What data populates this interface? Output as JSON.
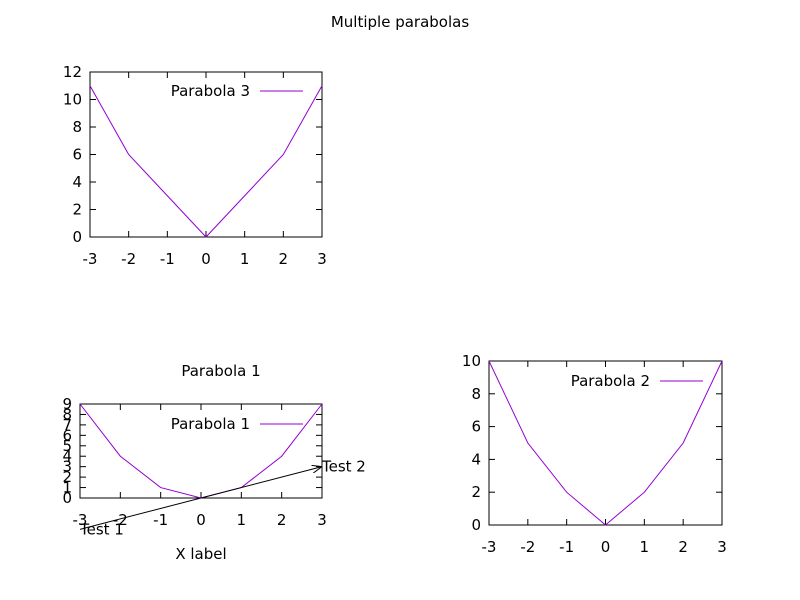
{
  "title": "Multiple parabolas",
  "chart_data": [
    {
      "type": "line",
      "title": "",
      "xlabel": "",
      "ylabel": "",
      "xlim": [
        -3,
        3
      ],
      "ylim": [
        0,
        12
      ],
      "xticks": [
        "-3",
        "-2",
        "-1",
        "0",
        "1",
        "2",
        "3"
      ],
      "yticks": [
        "0",
        "2",
        "4",
        "6",
        "8",
        "10",
        "12"
      ],
      "series": [
        {
          "name": "Parabola 3",
          "color": "#9400d3",
          "x": [
            -3,
            -2,
            -1,
            0,
            1,
            2,
            3
          ],
          "y": [
            11,
            6,
            3,
            0,
            3,
            6,
            11
          ]
        }
      ],
      "legend": "top-right",
      "grid": false
    },
    {
      "type": "line",
      "title": "Parabola 1",
      "xlabel": "X label",
      "ylabel": "",
      "xlim": [
        -3,
        3
      ],
      "ylim": [
        0,
        9
      ],
      "xticks": [
        "-3",
        "-2",
        "-1",
        "0",
        "1",
        "2",
        "3"
      ],
      "yticks": [
        "0",
        "1",
        "2",
        "3",
        "4",
        "5",
        "6",
        "7",
        "8",
        "9"
      ],
      "series": [
        {
          "name": "Parabola 1",
          "color": "#9400d3",
          "x": [
            -3,
            -2,
            -1,
            0,
            1,
            2,
            3
          ],
          "y": [
            9,
            4,
            1,
            0,
            1,
            4,
            9
          ]
        }
      ],
      "annotations": [
        {
          "text": "Test 1",
          "x": -3,
          "y": -3
        },
        {
          "text": "Test 2",
          "x": 3,
          "y": 3
        }
      ],
      "arrows": [
        {
          "from": [
            -3,
            -3
          ],
          "to": [
            3,
            3
          ]
        }
      ],
      "legend": "top-right",
      "grid": false
    },
    {
      "type": "line",
      "title": "",
      "xlabel": "",
      "ylabel": "",
      "xlim": [
        -3,
        3
      ],
      "ylim": [
        0,
        10
      ],
      "xticks": [
        "-3",
        "-2",
        "-1",
        "0",
        "1",
        "2",
        "3"
      ],
      "yticks": [
        "0",
        "2",
        "4",
        "6",
        "8",
        "10"
      ],
      "series": [
        {
          "name": "Parabola 2",
          "color": "#9400d3",
          "x": [
            -3,
            -2,
            -1,
            0,
            1,
            2,
            3
          ],
          "y": [
            10,
            5,
            2,
            0,
            2,
            5,
            10
          ]
        }
      ],
      "legend": "top-right",
      "grid": false
    }
  ]
}
